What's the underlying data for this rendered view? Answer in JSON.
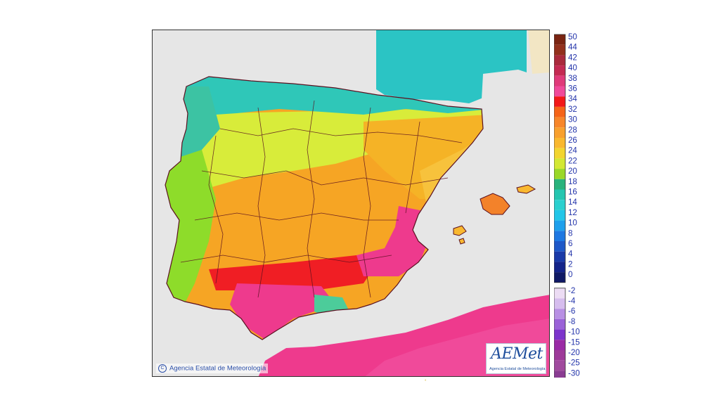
{
  "map": {
    "copyright": "Agencia Estatal de Meteorología",
    "copyright_symbol": "C",
    "logo": {
      "wordmark": "AEMet",
      "subtitle": "Agencia Estatal de Meteorología"
    },
    "background_color": "#e6e6e6",
    "regions": [
      {
        "name": "north-coast",
        "color": "#2fc7b8"
      },
      {
        "name": "bay-of-biscay",
        "color": "#2bc4c4"
      },
      {
        "name": "northern-plateau",
        "color": "#d8ec3a"
      },
      {
        "name": "west-portugal",
        "color": "#8edc2a"
      },
      {
        "name": "central-plateau",
        "color": "#f6a524"
      },
      {
        "name": "ebro-valley",
        "color": "#f5b326"
      },
      {
        "name": "east-coast",
        "color": "#f7c23c"
      },
      {
        "name": "valencia-murcia",
        "color": "#ee3a8d"
      },
      {
        "name": "guadalquivir",
        "color": "#ee3a8d"
      },
      {
        "name": "sierra-morena",
        "color": "#f01e24"
      },
      {
        "name": "balearic",
        "color": "#f3822a"
      },
      {
        "name": "north-africa",
        "color": "#ee3a8d"
      }
    ]
  },
  "legend": {
    "positive": [
      {
        "label": "50",
        "color": "#7a2412"
      },
      {
        "label": "44",
        "color": "#92301c"
      },
      {
        "label": "42",
        "color": "#aa2a3c"
      },
      {
        "label": "40",
        "color": "#c42a52"
      },
      {
        "label": "38",
        "color": "#e03a7a"
      },
      {
        "label": "36",
        "color": "#f04a9a"
      },
      {
        "label": "34",
        "color": "#f21818"
      },
      {
        "label": "32",
        "color": "#f56418"
      },
      {
        "label": "30",
        "color": "#f7862a"
      },
      {
        "label": "28",
        "color": "#f8a02e"
      },
      {
        "label": "26",
        "color": "#f9b830"
      },
      {
        "label": "24",
        "color": "#f2d530"
      },
      {
        "label": "22",
        "color": "#d3e834"
      },
      {
        "label": "20",
        "color": "#9ad828"
      },
      {
        "label": "18",
        "color": "#29b37c"
      },
      {
        "label": "16",
        "color": "#25c6b0"
      },
      {
        "label": "14",
        "color": "#2bd0cf"
      },
      {
        "label": "12",
        "color": "#22c6e8"
      },
      {
        "label": "10",
        "color": "#1ea0ec"
      },
      {
        "label": "8",
        "color": "#1e78e2"
      },
      {
        "label": "6",
        "color": "#1e58c8"
      },
      {
        "label": "4",
        "color": "#1a3aa8"
      },
      {
        "label": "2",
        "color": "#14248a"
      },
      {
        "label": "0",
        "color": "#101a66"
      }
    ],
    "negative": [
      {
        "label": "-2",
        "color": "#ecdcf4"
      },
      {
        "label": "-4",
        "color": "#d6bdee"
      },
      {
        "label": "-6",
        "color": "#b890e4"
      },
      {
        "label": "-8",
        "color": "#9a62d8"
      },
      {
        "label": "-10",
        "color": "#7c34cc"
      },
      {
        "label": "-15",
        "color": "#9a2aa6"
      },
      {
        "label": "-20",
        "color": "#9e3a9a"
      },
      {
        "label": "-25",
        "color": "#a04a9e"
      },
      {
        "label": "-30",
        "color": "#8a3c92"
      }
    ],
    "label_color": "#2233aa"
  }
}
